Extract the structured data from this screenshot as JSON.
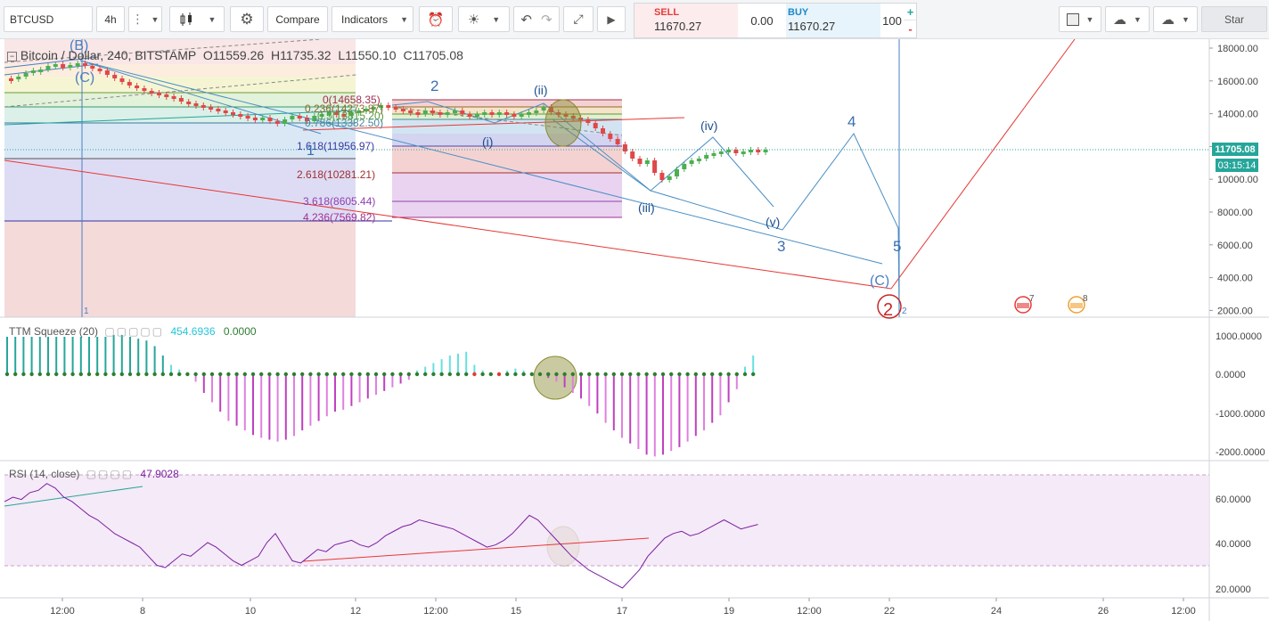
{
  "toolbar": {
    "symbol": "BTCUSD",
    "interval": "4h",
    "compare_label": "Compare",
    "indicators_label": "Indicators",
    "star_label": "Star"
  },
  "trade_panel": {
    "sell_label": "SELL",
    "sell_price": "11670.27",
    "spread": "0.00",
    "buy_label": "BUY",
    "buy_price": "11670.27",
    "quantity": "100",
    "plus": "+",
    "minus": "-"
  },
  "main_legend": {
    "title": "Bitcoin / Dollar, 240, BITSTAMP",
    "open": "O11559.26",
    "high": "H11735.32",
    "low": "L11550.10",
    "close": "C11705.08"
  },
  "price_axis": {
    "ticks": [
      "18000.00",
      "16000.00",
      "14000.00",
      "12000.00",
      "10000.00",
      "8000.00",
      "6000.00",
      "4000.00",
      "2000.00"
    ],
    "last_price": "11705.08",
    "countdown": "03:15:14"
  },
  "fib_labels": [
    {
      "text": "0(14658.35)"
    },
    {
      "text": "0.236(14273.87)"
    },
    {
      "text": "0.5(13815.20)"
    },
    {
      "text": "0.786(13382.50)"
    },
    {
      "text": "1.618(11956.97)"
    },
    {
      "text": "2.618(10281.21)"
    },
    {
      "text": "3.618(8605.44)"
    },
    {
      "text": "4.236(7569.82)"
    }
  ],
  "wave_labels": [
    "(B)",
    "(C)",
    "2",
    "(ii)",
    "(i)",
    "1",
    "(iv)",
    "(iii)",
    "(v)",
    "3",
    "4",
    "5",
    "(C)",
    "2",
    "1",
    "2"
  ],
  "event_badges": [
    "7",
    "8"
  ],
  "ttm": {
    "title": "TTM Squeeze (20)",
    "value1": "454.6936",
    "value2": "0.0000",
    "ticks": [
      "1000.0000",
      "0.0000",
      "-1000.0000",
      "-2000.0000"
    ]
  },
  "rsi": {
    "title": "RSI (14, close)",
    "value": "47.9028",
    "ticks": [
      "60.0000",
      "40.0000",
      "20.0000"
    ]
  },
  "time_axis": [
    "12:00",
    "8",
    "10",
    "12",
    "12:00",
    "15",
    "17",
    "19",
    "12:00",
    "22",
    "24",
    "26",
    "12:00"
  ],
  "colors": {
    "up": "#4caf50",
    "down": "#e04848",
    "wave": "#4a8fc4",
    "red_line": "#e53935",
    "ttm_cyan": "#66e0e0",
    "ttm_magenta": "#e080e0",
    "rsi_line": "#7b1fa2"
  }
}
